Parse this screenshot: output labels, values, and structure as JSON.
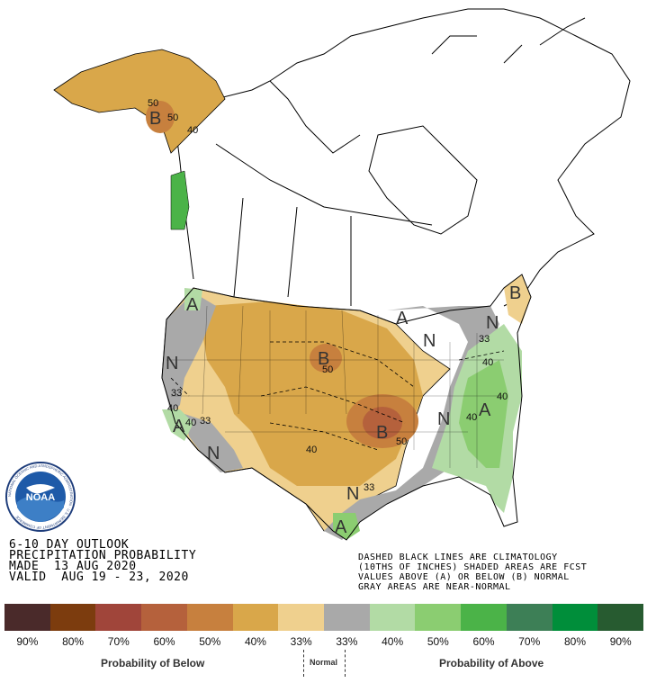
{
  "map": {
    "title_lines": [
      "6-10 DAY OUTLOOK",
      "PRECIPITATION PROBABILITY",
      "MADE  13 AUG 2020",
      "VALID  AUG 19 - 23, 2020"
    ],
    "notes_lines": [
      "DASHED BLACK LINES ARE CLIMATOLOGY",
      "(10THS OF INCHES) SHADED AREAS ARE FCST",
      "VALUES ABOVE (A) OR BELOW (B) NORMAL",
      "GRAY AREAS ARE NEAR-NORMAL"
    ],
    "region_labels": {
      "alaska_b": "B",
      "wa_a": "A",
      "nevada_n": "N",
      "socal_a": "A",
      "az_n": "N",
      "dakota_b": "B",
      "okla_b": "B",
      "maine_b": "B",
      "ny_a": "A",
      "ohio_n": "N",
      "ne_n": "N",
      "se_a": "A",
      "ky_n": "N",
      "tx_n": "N",
      "tx_a": "A"
    },
    "contour_labels": {
      "ak_50a": "50",
      "ak_50b": "50",
      "ak_40": "40",
      "sd_50": "50",
      "ok_50": "50",
      "tx_40": "40",
      "ca_33": "33",
      "ca_40": "40",
      "az_40": "40",
      "az_33": "33",
      "se_40": "40",
      "va_40": "40",
      "ne_33": "33",
      "ky_40": "40",
      "la_33": "33"
    }
  },
  "legend": {
    "swatches": [
      {
        "label": "90%",
        "color": "#4a2a2a"
      },
      {
        "label": "80%",
        "color": "#7c3c0e"
      },
      {
        "label": "70%",
        "color": "#a0453a"
      },
      {
        "label": "60%",
        "color": "#b5613c"
      },
      {
        "label": "50%",
        "color": "#c7803e"
      },
      {
        "label": "40%",
        "color": "#d9a74a"
      },
      {
        "label": "33%",
        "color": "#efd08e"
      },
      {
        "label": "33%",
        "color": "#a9a9a9"
      },
      {
        "label": "40%",
        "color": "#b2dba5"
      },
      {
        "label": "50%",
        "color": "#8bcd71"
      },
      {
        "label": "60%",
        "color": "#4bb348"
      },
      {
        "label": "70%",
        "color": "#3d7f56"
      },
      {
        "label": "80%",
        "color": "#008e3a"
      },
      {
        "label": "90%",
        "color": "#275b30"
      }
    ],
    "below_caption": "Probability of Below",
    "normal_caption": "Normal",
    "above_caption": "Probability of Above"
  },
  "logo": {
    "text": "NOAA",
    "ring_text": "NATIONAL OCEANIC AND ATMOSPHERIC ADMINISTRATION · U.S. DEPARTMENT OF COMMERCE"
  },
  "colors": {
    "below_40": "#d9a74a",
    "below_33": "#efd08e",
    "below_50": "#c7803e",
    "below_60": "#b5613c",
    "near_normal": "#a9a9a9",
    "above_40": "#b2dba5",
    "above_50": "#8bcd71",
    "above_60": "#4bb348"
  }
}
